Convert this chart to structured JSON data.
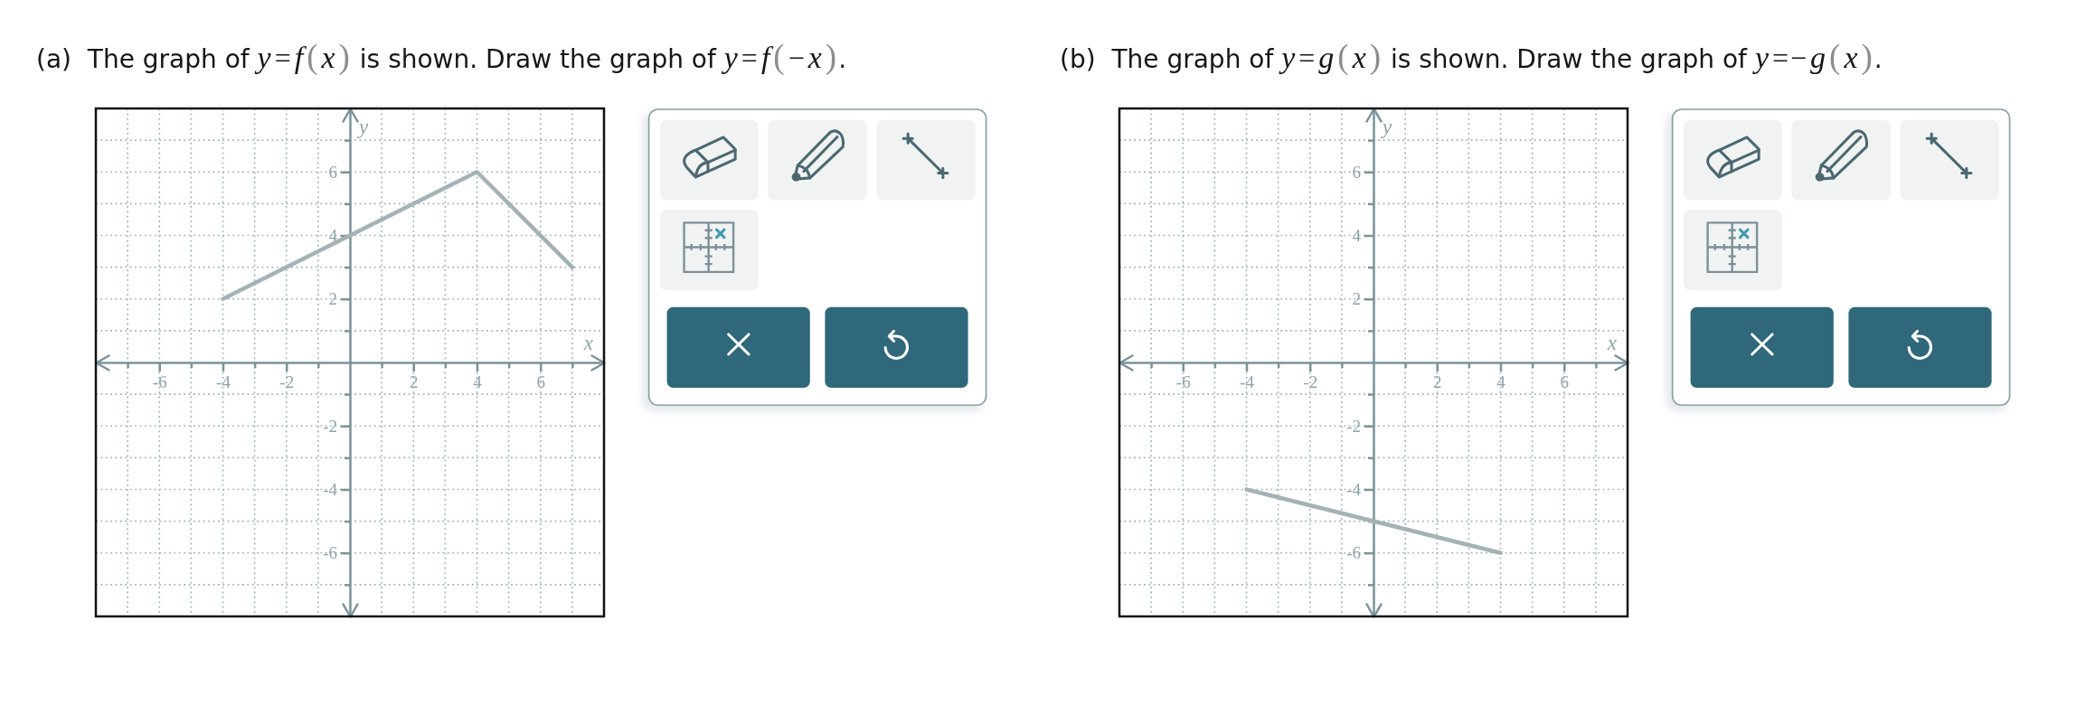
{
  "chart_data": [
    {
      "type": "line",
      "title": "(a)  The graph of y=f(x) is shown. Draw the graph of y=f(−x).",
      "xlabel": "x",
      "ylabel": "y",
      "x": [
        -4,
        4,
        7
      ],
      "series": [
        {
          "color": "#a5b2b5",
          "values": [
            2,
            6,
            3
          ]
        }
      ],
      "xlim": [
        -8,
        8
      ],
      "ylim": [
        -8,
        8
      ],
      "xticks": [
        {
          "value": -7,
          "label": null
        },
        -6,
        {
          "value": -5,
          "label": null
        },
        -4,
        {
          "value": -3,
          "label": null
        },
        -2,
        {
          "value": -1,
          "label": null
        },
        {
          "value": 1,
          "label": null
        },
        2,
        {
          "value": 3,
          "label": null
        },
        4,
        {
          "value": 5,
          "label": null
        },
        6,
        {
          "value": 7,
          "label": null
        }
      ],
      "yticks": [
        {
          "value": -7,
          "label": null
        },
        -6,
        {
          "value": -5,
          "label": null
        },
        -4,
        {
          "value": -3,
          "label": null
        },
        -2,
        {
          "value": -1,
          "label": null
        },
        {
          "value": 1,
          "label": null
        },
        2,
        {
          "value": 3,
          "label": null
        },
        4,
        {
          "value": 5,
          "label": null
        },
        6,
        {
          "value": 7,
          "label": null
        }
      ],
      "grid": true
    },
    {
      "type": "line",
      "title": "(b)  The graph of y=g(x) is shown. Draw the graph of y=−g(x).",
      "xlabel": "x",
      "ylabel": "y",
      "x": [
        -4,
        4
      ],
      "series": [
        {
          "color": "#a5b2b5",
          "values": [
            -4,
            -6
          ]
        }
      ],
      "xlim": [
        -8,
        8
      ],
      "ylim": [
        -8,
        8
      ],
      "xticks": [
        {
          "value": -7,
          "label": null
        },
        -6,
        {
          "value": -5,
          "label": null
        },
        -4,
        {
          "value": -3,
          "label": null
        },
        -2,
        {
          "value": -1,
          "label": null
        },
        {
          "value": 1,
          "label": null
        },
        2,
        {
          "value": 3,
          "label": null
        },
        4,
        {
          "value": 5,
          "label": null
        },
        6,
        {
          "value": 7,
          "label": null
        }
      ],
      "yticks": [
        {
          "value": -7,
          "label": null
        },
        -6,
        {
          "value": -5,
          "label": null
        },
        -4,
        {
          "value": -3,
          "label": null
        },
        -2,
        {
          "value": -1,
          "label": null
        },
        {
          "value": 1,
          "label": null
        },
        2,
        {
          "value": 3,
          "label": null
        },
        4,
        {
          "value": 5,
          "label": null
        },
        6,
        {
          "value": 7,
          "label": null
        }
      ],
      "grid": true
    }
  ]
}
